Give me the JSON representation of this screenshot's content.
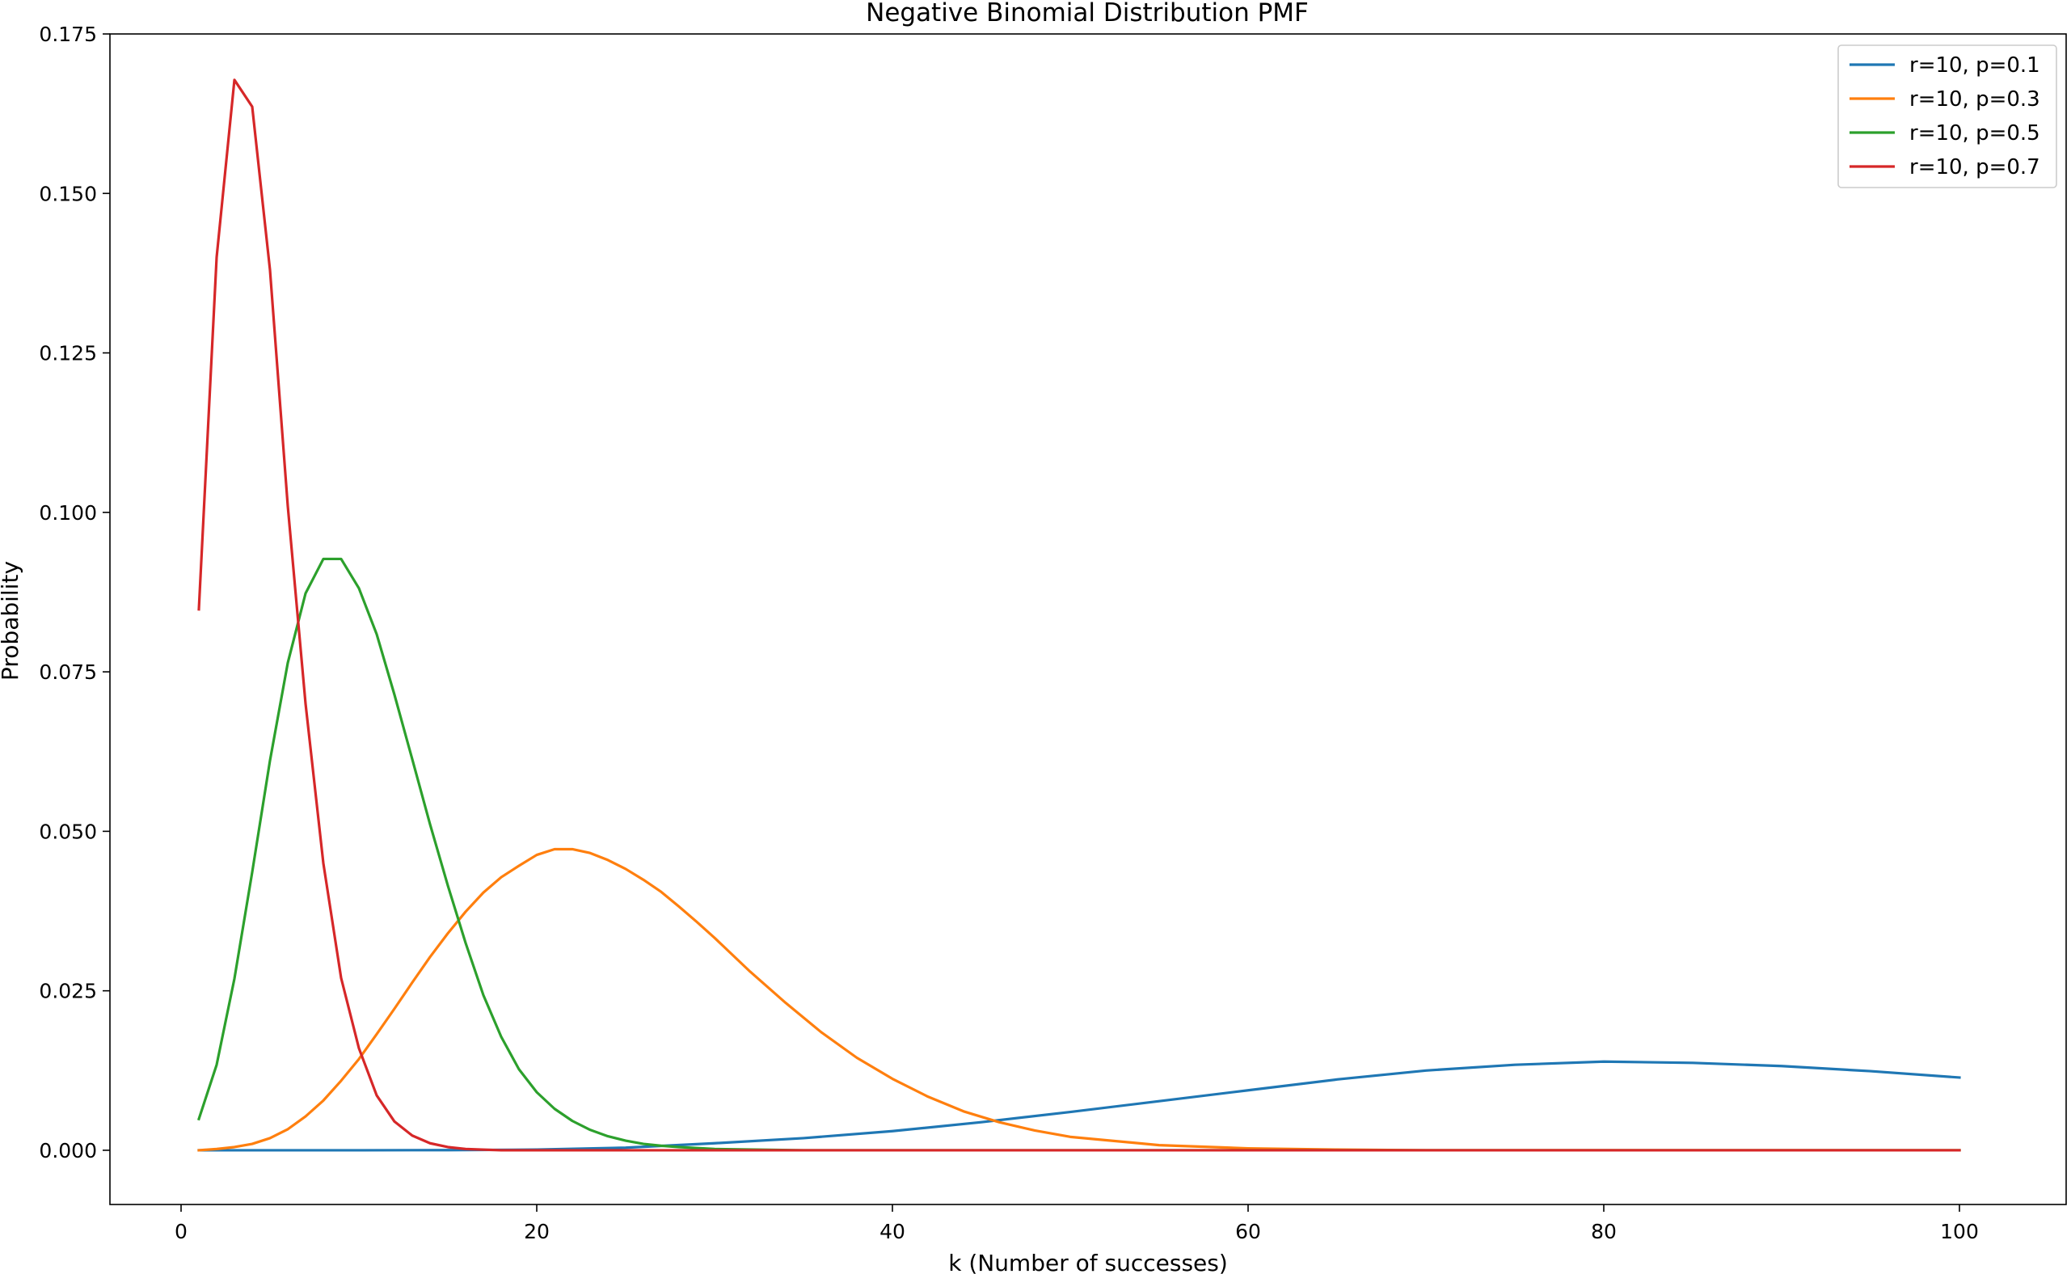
{
  "chart_data": {
    "type": "line",
    "title": "Negative Binomial Distribution PMF",
    "xlabel": "k (Number of successes)",
    "ylabel": "Probability",
    "xlim": [
      -4,
      106
    ],
    "ylim": [
      -0.0085,
      0.175
    ],
    "xticks": [
      0,
      20,
      40,
      60,
      80,
      100
    ],
    "xtick_labels": [
      "0",
      "20",
      "40",
      "60",
      "80",
      "100"
    ],
    "yticks": [
      0.0,
      0.025,
      0.05,
      0.075,
      0.1,
      0.125,
      0.15,
      0.175
    ],
    "ytick_labels": [
      "0.000",
      "0.025",
      "0.050",
      "0.075",
      "0.100",
      "0.125",
      "0.150",
      "0.175"
    ],
    "grid": false,
    "legend_position": "top-right",
    "x_range": [
      1,
      100
    ],
    "series": [
      {
        "name": "r=10, p=0.1",
        "color": "#1f77b4",
        "points": [
          [
            1,
            0.0
          ],
          [
            10,
            0.0
          ],
          [
            15,
            2e-05
          ],
          [
            20,
            0.0001
          ],
          [
            25,
            0.0004
          ],
          [
            30,
            0.0011
          ],
          [
            35,
            0.0019
          ],
          [
            40,
            0.003
          ],
          [
            45,
            0.0044
          ],
          [
            50,
            0.006
          ],
          [
            55,
            0.0077
          ],
          [
            60,
            0.0094
          ],
          [
            65,
            0.0111
          ],
          [
            70,
            0.0125
          ],
          [
            75,
            0.0134
          ],
          [
            80,
            0.0139
          ],
          [
            85,
            0.0137
          ],
          [
            90,
            0.0132
          ],
          [
            95,
            0.0124
          ],
          [
            100,
            0.0114
          ]
        ]
      },
      {
        "name": "r=10, p=0.3",
        "color": "#ff7f0e",
        "points": [
          [
            1,
            0.0
          ],
          [
            2,
            0.0002
          ],
          [
            3,
            0.0005
          ],
          [
            4,
            0.001
          ],
          [
            5,
            0.0019
          ],
          [
            6,
            0.0033
          ],
          [
            7,
            0.0053
          ],
          [
            8,
            0.0078
          ],
          [
            9,
            0.0109
          ],
          [
            10,
            0.0143
          ],
          [
            11,
            0.0182
          ],
          [
            12,
            0.0222
          ],
          [
            13,
            0.0263
          ],
          [
            14,
            0.0303
          ],
          [
            15,
            0.034
          ],
          [
            16,
            0.0374
          ],
          [
            17,
            0.0404
          ],
          [
            18,
            0.0428
          ],
          [
            19,
            0.0446
          ],
          [
            20,
            0.0463
          ],
          [
            21,
            0.0472
          ],
          [
            22,
            0.0472
          ],
          [
            23,
            0.0466
          ],
          [
            24,
            0.0455
          ],
          [
            25,
            0.0441
          ],
          [
            26,
            0.0424
          ],
          [
            27,
            0.0405
          ],
          [
            28,
            0.0382
          ],
          [
            29,
            0.0358
          ],
          [
            30,
            0.0333
          ],
          [
            32,
            0.028
          ],
          [
            34,
            0.0231
          ],
          [
            36,
            0.0185
          ],
          [
            38,
            0.0145
          ],
          [
            40,
            0.0112
          ],
          [
            42,
            0.0084
          ],
          [
            44,
            0.0061
          ],
          [
            46,
            0.0044
          ],
          [
            48,
            0.0031
          ],
          [
            50,
            0.0021
          ],
          [
            55,
            0.0008
          ],
          [
            60,
            0.0003
          ],
          [
            65,
            0.0001
          ],
          [
            70,
            0.0
          ],
          [
            80,
            0.0
          ],
          [
            90,
            0.0
          ],
          [
            100,
            0.0
          ]
        ]
      },
      {
        "name": "r=10, p=0.5",
        "color": "#2ca02c",
        "points": [
          [
            1,
            0.0049
          ],
          [
            2,
            0.0134
          ],
          [
            3,
            0.0269
          ],
          [
            4,
            0.0436
          ],
          [
            5,
            0.0611
          ],
          [
            6,
            0.0764
          ],
          [
            7,
            0.0873
          ],
          [
            8,
            0.0927
          ],
          [
            9,
            0.0927
          ],
          [
            10,
            0.0881
          ],
          [
            11,
            0.0809
          ],
          [
            12,
            0.0714
          ],
          [
            13,
            0.0613
          ],
          [
            14,
            0.0511
          ],
          [
            15,
            0.0415
          ],
          [
            16,
            0.0325
          ],
          [
            17,
            0.0243
          ],
          [
            18,
            0.0178
          ],
          [
            19,
            0.0127
          ],
          [
            20,
            0.0091
          ],
          [
            21,
            0.0065
          ],
          [
            22,
            0.0046
          ],
          [
            23,
            0.0032
          ],
          [
            24,
            0.0022
          ],
          [
            25,
            0.0015
          ],
          [
            26,
            0.001
          ],
          [
            27,
            0.0007
          ],
          [
            28,
            0.0005
          ],
          [
            30,
            0.0002
          ],
          [
            35,
            0.0
          ],
          [
            40,
            0.0
          ],
          [
            50,
            0.0
          ],
          [
            60,
            0.0
          ],
          [
            70,
            0.0
          ],
          [
            80,
            0.0
          ],
          [
            90,
            0.0
          ],
          [
            100,
            0.0
          ]
        ]
      },
      {
        "name": "r=10, p=0.7",
        "color": "#d62728",
        "points": [
          [
            1,
            0.0848
          ],
          [
            2,
            0.14
          ],
          [
            3,
            0.1678
          ],
          [
            4,
            0.1636
          ],
          [
            5,
            0.138
          ],
          [
            6,
            0.101
          ],
          [
            7,
            0.07
          ],
          [
            8,
            0.045
          ],
          [
            9,
            0.027
          ],
          [
            10,
            0.016
          ],
          [
            11,
            0.0086
          ],
          [
            12,
            0.0045
          ],
          [
            13,
            0.0023
          ],
          [
            14,
            0.0011
          ],
          [
            15,
            0.0005
          ],
          [
            16,
            0.0002
          ],
          [
            18,
            0.0
          ],
          [
            20,
            0.0
          ],
          [
            30,
            0.0
          ],
          [
            40,
            0.0
          ],
          [
            50,
            0.0
          ],
          [
            60,
            0.0
          ],
          [
            70,
            0.0
          ],
          [
            80,
            0.0
          ],
          [
            90,
            0.0
          ],
          [
            100,
            0.0
          ]
        ]
      }
    ]
  }
}
